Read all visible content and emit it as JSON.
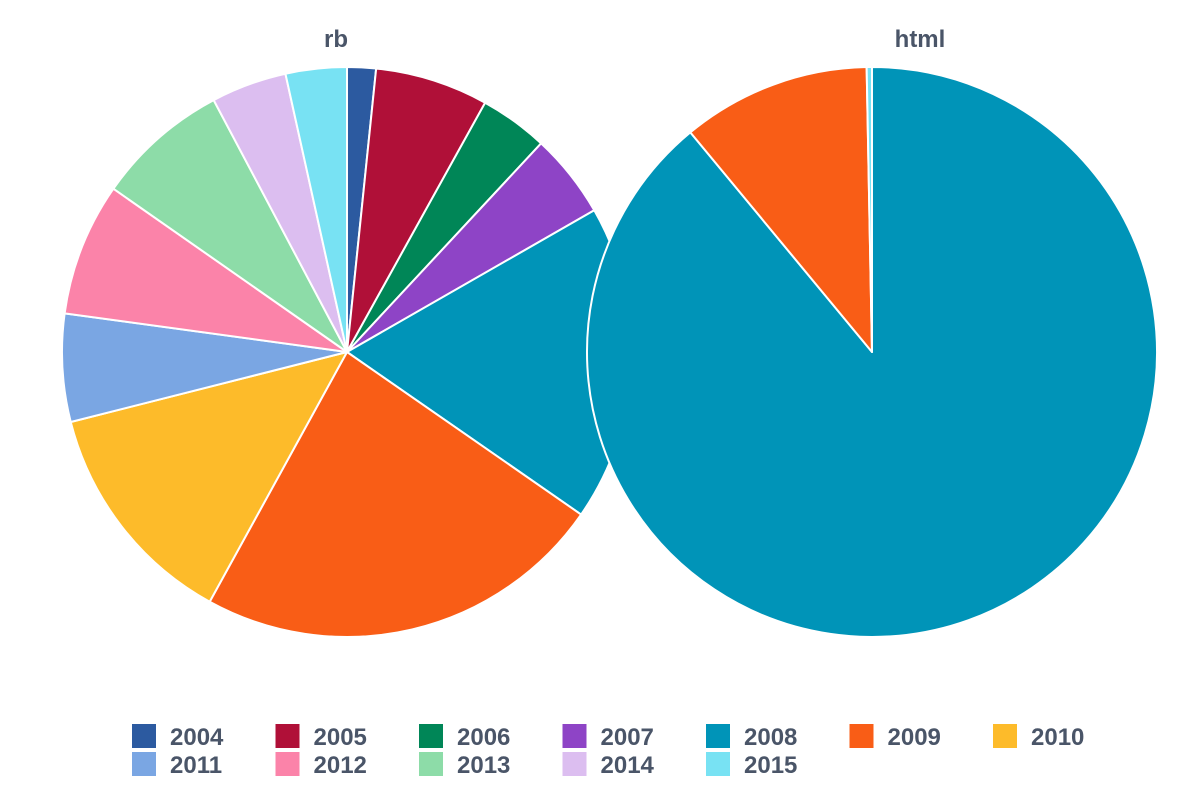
{
  "chart_data": [
    {
      "type": "pie",
      "title": "rb",
      "categories": [
        "2004",
        "2005",
        "2006",
        "2007",
        "2008",
        "2009",
        "2010",
        "2011",
        "2012",
        "2013",
        "2014",
        "2015"
      ],
      "values": [
        1.6,
        6.3,
        3.8,
        4.7,
        17.6,
        22.9,
        12.8,
        6.0,
        7.4,
        7.4,
        4.2,
        3.4
      ]
    },
    {
      "type": "pie",
      "title": "html",
      "categories": [
        "2004",
        "2005",
        "2006",
        "2007",
        "2008",
        "2009",
        "2010",
        "2011",
        "2012",
        "2013",
        "2014",
        "2015"
      ],
      "values": [
        0,
        0,
        0,
        0,
        89.0,
        10.7,
        0,
        0,
        0,
        0,
        0,
        0.3
      ]
    }
  ],
  "legend": {
    "placement": "bottom",
    "items": [
      {
        "label": "2004",
        "color": "#2c5aa0"
      },
      {
        "label": "2005",
        "color": "#b01038"
      },
      {
        "label": "2006",
        "color": "#008657"
      },
      {
        "label": "2007",
        "color": "#8e44c6"
      },
      {
        "label": "2008",
        "color": "#0094b8"
      },
      {
        "label": "2009",
        "color": "#f95d16"
      },
      {
        "label": "2010",
        "color": "#fdbb2a"
      },
      {
        "label": "2011",
        "color": "#7aa6e3"
      },
      {
        "label": "2012",
        "color": "#fb83a9"
      },
      {
        "label": "2013",
        "color": "#8ddca8"
      },
      {
        "label": "2014",
        "color": "#dcbef0"
      },
      {
        "label": "2015",
        "color": "#78e2f3"
      }
    ]
  }
}
